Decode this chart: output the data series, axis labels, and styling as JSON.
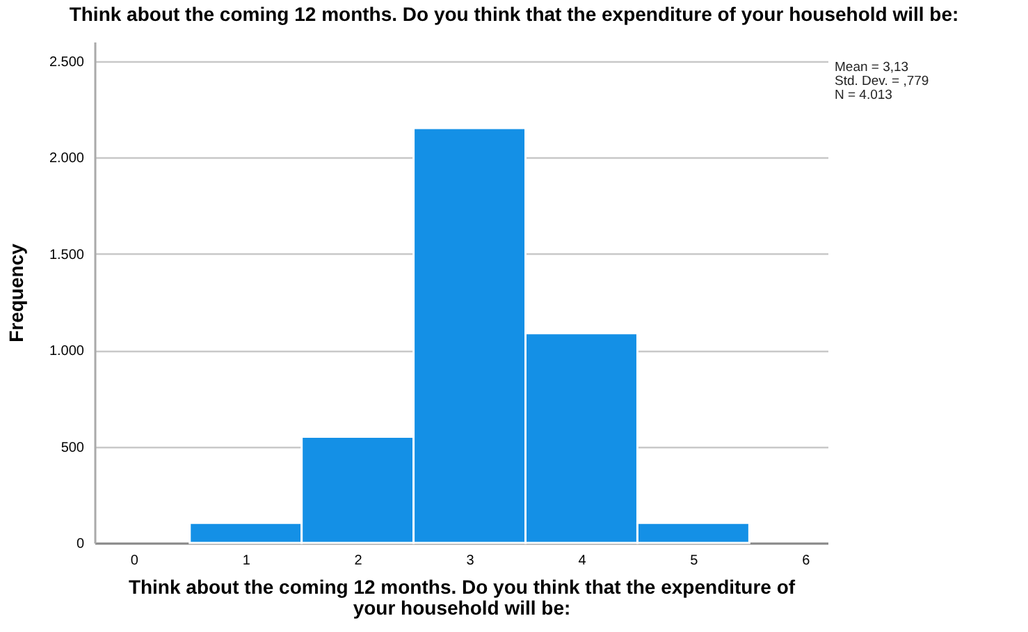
{
  "chart_data": {
    "type": "histogram",
    "title": "Think about the coming 12 months. Do you think that the expenditure of your household will be:",
    "xlabel": "Think about the coming 12 months. Do you think that the expenditure of your household will be:",
    "ylabel": "Frequency",
    "bins": [
      0.5,
      1.5,
      2.5,
      3.5,
      4.5,
      5.5
    ],
    "values": [
      104,
      551,
      2152,
      1088,
      104
    ],
    "color": "#1490e6",
    "xlim": [
      -0.35,
      6.2
    ],
    "xticks": [
      0,
      1,
      2,
      3,
      4,
      5,
      6
    ],
    "ylim": [
      0,
      2600
    ],
    "yticks": [
      0,
      {
        "value": 500,
        "label": "500"
      },
      {
        "value": 1000,
        "label": "1.000"
      },
      {
        "value": 1500,
        "label": "1.500"
      },
      {
        "value": 2000,
        "label": "2.000"
      },
      {
        "value": 2500,
        "label": "2.500"
      }
    ],
    "grid": "y",
    "annotations": [
      "Mean = 3,13",
      "Std. Dev. = ,779",
      "N = 4.013"
    ]
  }
}
